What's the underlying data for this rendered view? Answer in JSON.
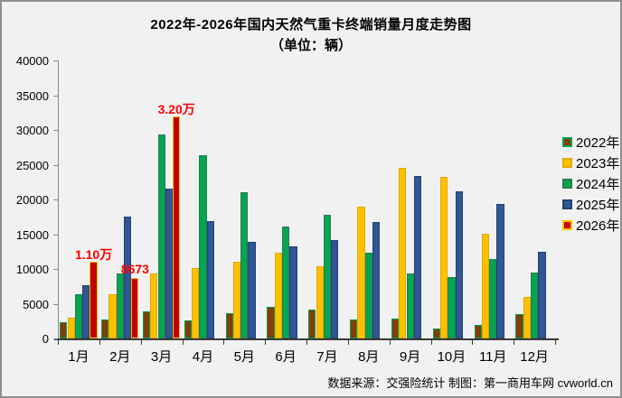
{
  "window": {
    "title_line1": "2022年-2026年国内天然气重卡终端销量月度走势图",
    "title_line2": "（单位：辆）"
  },
  "footer": {
    "text": "数据来源：交强险统计  制图：第一商用车网 cvworld.cn"
  },
  "chart_data": {
    "type": "bar",
    "title": "2022年-2026年国内天然气重卡终端销量月度走势图",
    "subtitle": "（单位：辆）",
    "categories": [
      "1月",
      "2月",
      "3月",
      "4月",
      "5月",
      "6月",
      "7月",
      "8月",
      "9月",
      "10月",
      "11月",
      "12月"
    ],
    "ylim": [
      0,
      40000
    ],
    "yticks": [
      0,
      5000,
      10000,
      15000,
      20000,
      25000,
      30000,
      35000,
      40000
    ],
    "grid": false,
    "legend_position": "right",
    "series": [
      {
        "name": "2022年",
        "fill": "#843C0C",
        "border": "#00A14B",
        "values": [
          2300,
          2700,
          3900,
          2600,
          3600,
          4600,
          4100,
          2700,
          2800,
          1400,
          2000,
          3500
        ]
      },
      {
        "name": "2023年",
        "fill": "#FFC000",
        "border": "#E0A800",
        "values": [
          3000,
          6400,
          9400,
          10100,
          11100,
          12400,
          10400,
          19000,
          24500,
          23200,
          15100,
          6000
        ]
      },
      {
        "name": "2024年",
        "fill": "#00A651",
        "border": "#2E7B4F",
        "values": [
          6400,
          9400,
          29400,
          26400,
          21000,
          16100,
          17800,
          12300,
          9300,
          8800,
          11400,
          9500
        ]
      },
      {
        "name": "2025年",
        "fill": "#2F5796",
        "border": "#26406E",
        "values": [
          7700,
          17500,
          21600,
          16900,
          13900,
          13300,
          14100,
          16800,
          23400,
          21200,
          19400,
          12500
        ]
      },
      {
        "name": "2026年",
        "fill": "#C00000",
        "border": "#FFC000",
        "values": [
          11000,
          8673,
          32000,
          null,
          null,
          null,
          null,
          null,
          null,
          null,
          null,
          null
        ]
      }
    ],
    "annotations": [
      {
        "category": "1月",
        "series": "2026年",
        "label": "1.10万",
        "color": "#FF0000"
      },
      {
        "category": "2月",
        "series": "2026年",
        "label": "8673",
        "color": "#FF0000"
      },
      {
        "category": "3月",
        "series": "2026年",
        "label": "3.20万",
        "color": "#FF0000"
      }
    ]
  }
}
